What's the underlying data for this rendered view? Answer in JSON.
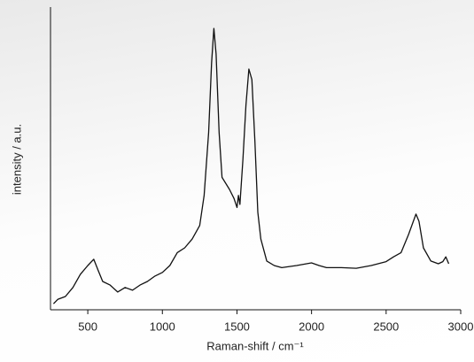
{
  "chart_data": {
    "type": "line",
    "x_label": "Raman-shift / cm⁻¹",
    "y_label": "intensity / a.u.",
    "x": [
      270,
      300,
      350,
      400,
      450,
      500,
      540,
      570,
      600,
      650,
      700,
      750,
      800,
      850,
      900,
      950,
      1000,
      1050,
      1100,
      1150,
      1200,
      1250,
      1280,
      1310,
      1330,
      1345,
      1360,
      1380,
      1400,
      1450,
      1480,
      1500,
      1510,
      1520,
      1540,
      1560,
      1580,
      1600,
      1620,
      1640,
      1660,
      1700,
      1750,
      1800,
      1900,
      2000,
      2050,
      2100,
      2200,
      2300,
      2400,
      2500,
      2550,
      2600,
      2650,
      2700,
      2720,
      2750,
      2800,
      2850,
      2880,
      2900,
      2920
    ],
    "values": [
      2,
      3.5,
      4.4,
      7.4,
      11.8,
      14.7,
      16.8,
      13,
      9.4,
      8.2,
      5.9,
      7.4,
      6.5,
      8.2,
      9.4,
      11.2,
      12.4,
      14.7,
      19,
      20.6,
      23.5,
      28,
      38,
      59,
      82,
      93.5,
      85,
      59,
      44,
      40,
      37,
      34,
      38,
      35,
      50,
      68,
      80,
      76.5,
      56,
      32.4,
      23.5,
      16.2,
      14.7,
      14,
      14.7,
      15.6,
      14.7,
      14,
      14,
      13.8,
      14.7,
      16,
      17.6,
      19,
      25,
      31.8,
      29.4,
      20.6,
      16.2,
      15.3,
      16,
      17.6,
      15.3
    ],
    "color": "#111111",
    "xlim": [
      250,
      3000
    ],
    "xticks": [
      500,
      1000,
      1500,
      2000,
      2500,
      3000
    ],
    "ylim": [
      0,
      100
    ]
  }
}
